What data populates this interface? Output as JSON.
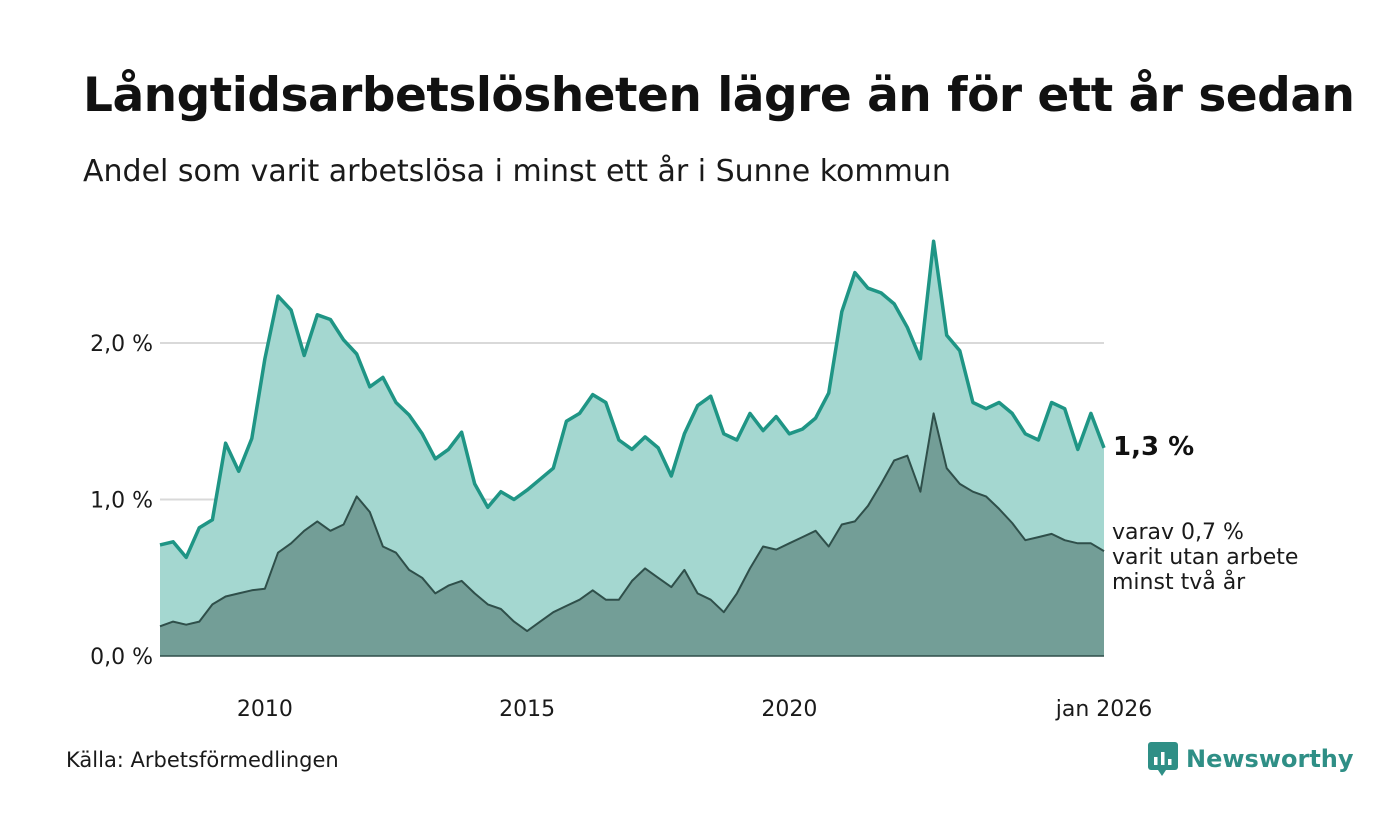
{
  "header": {
    "title": "Långtidsarbetslösheten lägre än för ett år sedan",
    "subtitle": "Andel som varit arbetslösa i minst ett år i Sunne kommun"
  },
  "footer": {
    "source": "Källa: Arbetsförmedlingen",
    "logo_text": "Newsworthy"
  },
  "labels": {
    "end_value": "1,3 %",
    "sub_line1": "varav 0,7 %",
    "sub_line2": "varit utan arbete",
    "sub_line3": "minst två år"
  },
  "colors": {
    "series1_fill": "#a4d7d0",
    "series1_line": "#1f9585",
    "series2_fill": "#739e97",
    "series2_line": "#2f4f4a",
    "grid": "#d9d9d9",
    "logo": "#2f8f86"
  },
  "chart_data": {
    "type": "area",
    "title": "Långtidsarbetslösheten lägre än för ett år sedan",
    "subtitle": "Andel som varit arbetslösa i minst ett år i Sunne kommun",
    "ylim": [
      0,
      2.8
    ],
    "y_ticks": [
      0,
      1,
      2
    ],
    "y_tick_labels": [
      "0,0 %",
      "1,0 %",
      "2,0 %"
    ],
    "x_ticks": [
      2010,
      2015,
      2020,
      2026
    ],
    "x_tick_labels": [
      "2010",
      "2015",
      "2020",
      "jan 2026"
    ],
    "x_range": [
      2008,
      2026
    ],
    "series": [
      {
        "name": "Varit arbetslösa minst ett år",
        "x": [
          2008.0,
          2008.25,
          2008.5,
          2008.75,
          2009.0,
          2009.25,
          2009.5,
          2009.75,
          2010.0,
          2010.25,
          2010.5,
          2010.75,
          2011.0,
          2011.25,
          2011.5,
          2011.75,
          2012.0,
          2012.25,
          2012.5,
          2012.75,
          2013.0,
          2013.25,
          2013.5,
          2013.75,
          2014.0,
          2014.25,
          2014.5,
          2014.75,
          2015.0,
          2015.25,
          2015.5,
          2015.75,
          2016.0,
          2016.25,
          2016.5,
          2016.75,
          2017.0,
          2017.25,
          2017.5,
          2017.75,
          2018.0,
          2018.25,
          2018.5,
          2018.75,
          2019.0,
          2019.25,
          2019.5,
          2019.75,
          2020.0,
          2020.25,
          2020.5,
          2020.75,
          2021.0,
          2021.25,
          2021.5,
          2021.75,
          2022.0,
          2022.25,
          2022.5,
          2022.75,
          2023.0,
          2023.25,
          2023.5,
          2023.75,
          2024.0,
          2024.25,
          2024.5,
          2024.75,
          2025.0,
          2025.25,
          2025.5,
          2025.75,
          2026.0
        ],
        "values": [
          0.71,
          0.73,
          0.63,
          0.82,
          0.87,
          1.36,
          1.18,
          1.39,
          1.9,
          2.3,
          2.21,
          1.92,
          2.18,
          2.15,
          2.02,
          1.93,
          1.72,
          1.78,
          1.62,
          1.54,
          1.42,
          1.26,
          1.32,
          1.43,
          1.1,
          0.95,
          1.05,
          1.0,
          1.06,
          1.13,
          1.2,
          1.5,
          1.55,
          1.67,
          1.62,
          1.38,
          1.32,
          1.4,
          1.33,
          1.15,
          1.42,
          1.6,
          1.66,
          1.42,
          1.38,
          1.55,
          1.44,
          1.53,
          1.42,
          1.45,
          1.52,
          1.68,
          2.2,
          2.45,
          2.35,
          2.32,
          2.25,
          2.1,
          1.9,
          2.65,
          2.05,
          1.95,
          1.62,
          1.58,
          1.62,
          1.55,
          1.42,
          1.38,
          1.62,
          1.58,
          1.32,
          1.55,
          1.33
        ]
      },
      {
        "name": "varav varit utan arbete minst två år",
        "x": [
          2008.0,
          2008.25,
          2008.5,
          2008.75,
          2009.0,
          2009.25,
          2009.5,
          2009.75,
          2010.0,
          2010.25,
          2010.5,
          2010.75,
          2011.0,
          2011.25,
          2011.5,
          2011.75,
          2012.0,
          2012.25,
          2012.5,
          2012.75,
          2013.0,
          2013.25,
          2013.5,
          2013.75,
          2014.0,
          2014.25,
          2014.5,
          2014.75,
          2015.0,
          2015.25,
          2015.5,
          2015.75,
          2016.0,
          2016.25,
          2016.5,
          2016.75,
          2017.0,
          2017.25,
          2017.5,
          2017.75,
          2018.0,
          2018.25,
          2018.5,
          2018.75,
          2019.0,
          2019.25,
          2019.5,
          2019.75,
          2020.0,
          2020.25,
          2020.5,
          2020.75,
          2021.0,
          2021.25,
          2021.5,
          2021.75,
          2022.0,
          2022.25,
          2022.5,
          2022.75,
          2023.0,
          2023.25,
          2023.5,
          2023.75,
          2024.0,
          2024.25,
          2024.5,
          2024.75,
          2025.0,
          2025.25,
          2025.5,
          2025.75,
          2026.0
        ],
        "values": [
          0.19,
          0.22,
          0.2,
          0.22,
          0.33,
          0.38,
          0.4,
          0.42,
          0.43,
          0.66,
          0.72,
          0.8,
          0.86,
          0.8,
          0.84,
          1.02,
          0.92,
          0.7,
          0.66,
          0.55,
          0.5,
          0.4,
          0.45,
          0.48,
          0.4,
          0.33,
          0.3,
          0.22,
          0.16,
          0.22,
          0.28,
          0.32,
          0.36,
          0.42,
          0.36,
          0.36,
          0.48,
          0.56,
          0.5,
          0.44,
          0.55,
          0.4,
          0.36,
          0.28,
          0.4,
          0.56,
          0.7,
          0.68,
          0.72,
          0.76,
          0.8,
          0.7,
          0.84,
          0.86,
          0.96,
          1.1,
          1.25,
          1.28,
          1.05,
          1.55,
          1.2,
          1.1,
          1.05,
          1.02,
          0.94,
          0.85,
          0.74,
          0.76,
          0.78,
          0.74,
          0.72,
          0.72,
          0.67
        ]
      }
    ]
  }
}
